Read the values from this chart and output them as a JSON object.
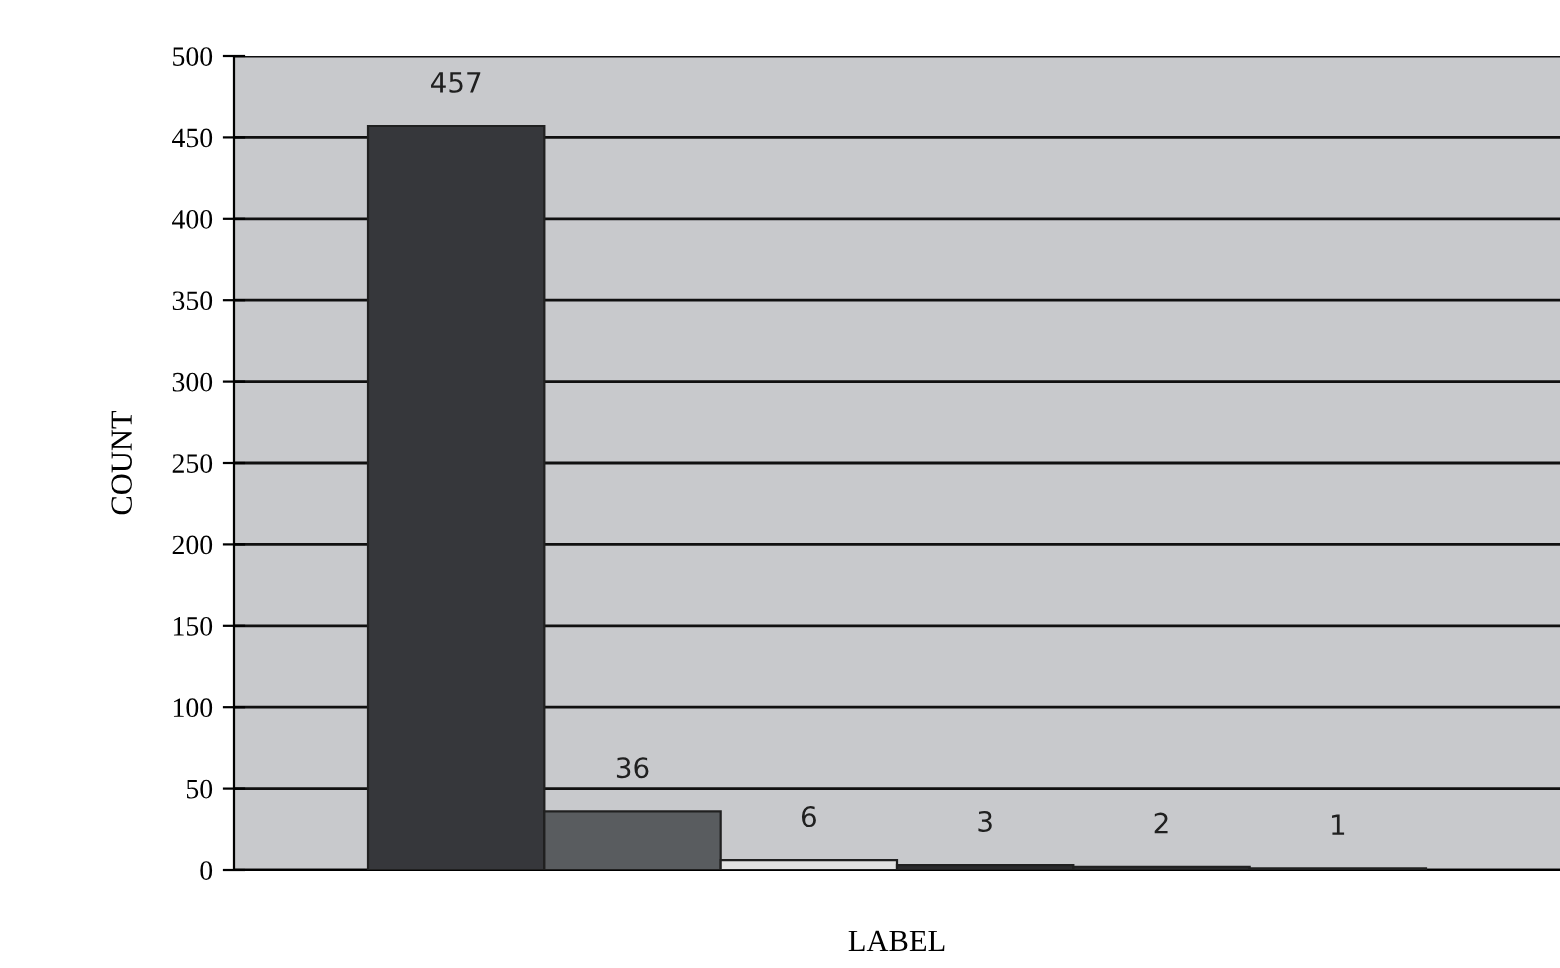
{
  "chart_data": {
    "type": "bar",
    "xlabel": "LABEL",
    "ylabel": "COUNT",
    "categories": [
      null,
      null,
      null,
      null,
      null,
      null
    ],
    "values": [
      457,
      36,
      6,
      3,
      2,
      1
    ],
    "colors": [
      "#36373b",
      "#595c5f",
      "#e2e2e2",
      "#2a2a2c",
      "#2a2a2c",
      "#2a2a2c"
    ],
    "ylim": [
      0,
      500
    ],
    "yticks": [
      0,
      50,
      100,
      150,
      200,
      250,
      300,
      350,
      400,
      450,
      500
    ],
    "grid": "y",
    "data_labels": true
  }
}
